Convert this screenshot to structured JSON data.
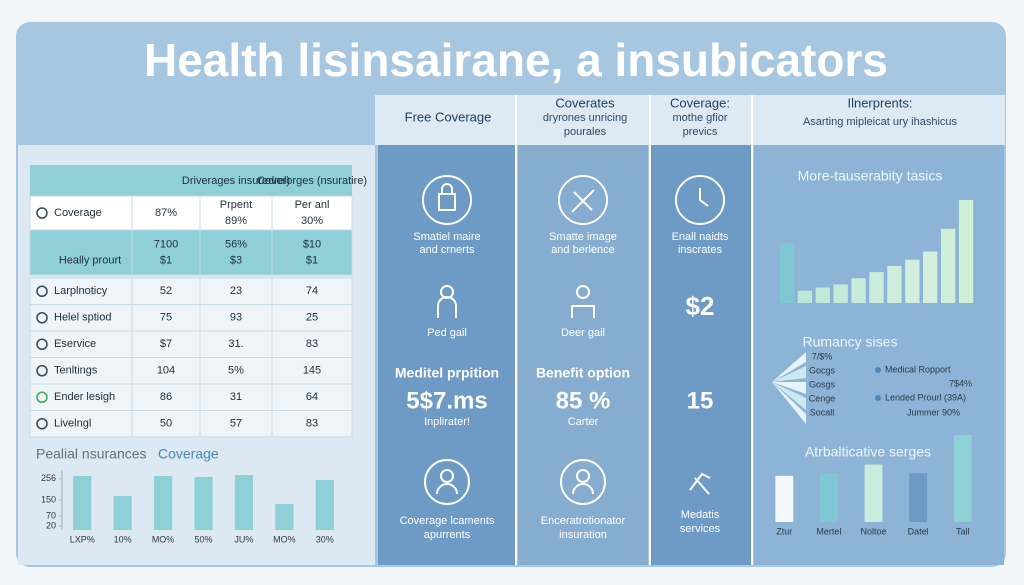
{
  "header": {
    "title": "Health lisinsairane, a insubicators"
  },
  "column_headers": [
    [
      "Free Coverage"
    ],
    [
      "Coverates",
      "dryrones unricing",
      "pourales"
    ],
    [
      "Coverage:",
      "mothe gfior",
      "prevics"
    ],
    [
      "Ilnerprents:",
      "Asarting mipleicat ury ihashicus"
    ]
  ],
  "table": {
    "header": [
      "Driverages insuredrel)",
      "Coverorges (nsuratire)"
    ],
    "rows": [
      [
        "Coverage",
        "87%",
        [
          "Prpent",
          "89%"
        ],
        [
          "Per anl",
          "30%"
        ]
      ],
      [
        "Heally prourt",
        [
          "7100",
          "$1"
        ],
        [
          "56%",
          "$3"
        ],
        [
          "$10",
          "$1"
        ]
      ],
      [
        "Larplnoticy",
        "52",
        "23",
        "74"
      ],
      [
        "Helel sptiod",
        "75",
        "93",
        "25"
      ],
      [
        "Eservice",
        "$7",
        "31.",
        "83"
      ],
      [
        "Tenltings",
        "104",
        "5%",
        "145"
      ],
      [
        "Ender lesigh",
        "86",
        "31",
        "64"
      ],
      [
        "Livelngl",
        "50",
        "57",
        "83"
      ]
    ]
  },
  "panels": [
    {
      "caption1": [
        "Smatiel maire",
        "and crnerts"
      ],
      "caption2": "Ped gail",
      "heading": "Meditel prpition",
      "figure": "5$7.ms",
      "note": "Inplirater!",
      "caption3": [
        "Coverage lcaments",
        "apurrents"
      ]
    },
    {
      "caption1": [
        "Smatte image",
        "and berlence"
      ],
      "caption2": "Deer gail",
      "heading": "Benefit option",
      "figure": "85 %",
      "note": "Carter",
      "caption3": [
        "Enceratrotionator",
        "insuration"
      ]
    },
    {
      "caption1": [
        "Enall naidts",
        "inscrates"
      ],
      "figure_top": "$2",
      "figure": "15",
      "caption3": [
        "Medatis",
        "services"
      ]
    }
  ],
  "fan": {
    "title": "Rumancy sises",
    "labels": [
      "7/$%",
      "Gocgs",
      "Gosgs",
      "Cenge",
      "Socall"
    ],
    "legend": [
      "Medical Ropport",
      "7$4%",
      "Lended Prourl (39A)",
      "Jummer 90%"
    ]
  },
  "chart_data": [
    {
      "type": "bar",
      "title": "Pealial nsurances",
      "title_accent": "Coverage",
      "categories": [
        "LXP%",
        "10%",
        "MO%",
        "50%",
        "JU%",
        "MO%",
        "30%"
      ],
      "values": [
        270,
        170,
        270,
        265,
        275,
        130,
        250
      ],
      "color": "#8fd0d8",
      "ylim": [
        0,
        300
      ],
      "yticks": [
        256,
        150,
        70,
        20
      ]
    },
    {
      "type": "bar",
      "title": "More-tauserabity tasics",
      "values": [
        58,
        12,
        15,
        18,
        24,
        30,
        36,
        42,
        50,
        72,
        100
      ],
      "colors": [
        "#7fc8d3",
        "#bfe8da",
        "#c2e9da",
        "#c5eadb",
        "#c8ebdc",
        "#cbecdc",
        "#ceeddd",
        "#d1eede",
        "#d4efde",
        "#d0efd9",
        "#cdf0d6"
      ],
      "ylim": [
        0,
        100
      ]
    },
    {
      "type": "bar",
      "title": "Atrbalticative serges",
      "categories": [
        "Ztur",
        "Mertel",
        "Noltoe",
        "Datel",
        "Tall"
      ],
      "values": [
        53,
        56,
        66,
        56,
        100
      ],
      "colors": [
        "#f5f8fb",
        "#7fc8d3",
        "#c9ecdf",
        "#6d9bc5",
        "#8fd3d9"
      ],
      "ylim": [
        0,
        100
      ]
    }
  ]
}
